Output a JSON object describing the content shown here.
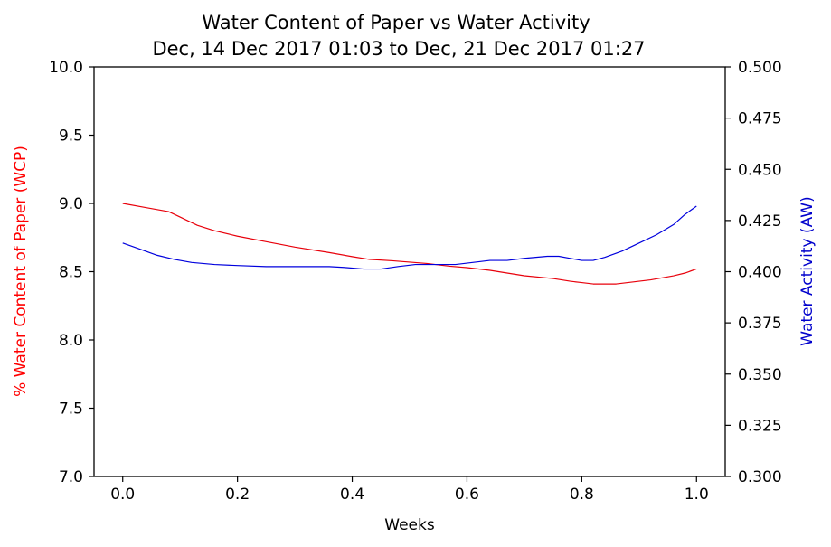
{
  "chart_data": {
    "type": "line",
    "title": "Water Content of Paper vs Water Activity",
    "subtitle": "Dec, 14 Dec 2017 01:03 to Dec, 21 Dec 2017 01:27",
    "xlabel": "Weeks",
    "ylabel_left": "% Water Content of Paper (WCP)",
    "ylabel_right": "Water Activity (AW)",
    "xlim": [
      -0.05,
      1.05
    ],
    "ylim_left": [
      7.0,
      10.0
    ],
    "ylim_right": [
      0.3,
      0.5
    ],
    "x_ticks": [
      "0.0",
      "0.2",
      "0.4",
      "0.6",
      "0.8",
      "1.0"
    ],
    "y_ticks_left": [
      "7.0",
      "7.5",
      "8.0",
      "8.5",
      "9.0",
      "9.5",
      "10.0"
    ],
    "y_ticks_right": [
      "0.300",
      "0.325",
      "0.350",
      "0.375",
      "0.400",
      "0.425",
      "0.450",
      "0.475",
      "0.500"
    ],
    "grid": false,
    "left_label_color": "#ff0000",
    "right_label_color": "#0000cc",
    "series": [
      {
        "axis": "left",
        "color": "#e8000b",
        "x": [
          0.0,
          0.04,
          0.08,
          0.1,
          0.13,
          0.16,
          0.2,
          0.25,
          0.3,
          0.36,
          0.4,
          0.43,
          0.47,
          0.5,
          0.53,
          0.57,
          0.6,
          0.64,
          0.67,
          0.7,
          0.75,
          0.78,
          0.8,
          0.82,
          0.84,
          0.86,
          0.88,
          0.92,
          0.96,
          0.98,
          1.0
        ],
        "values": [
          9.0,
          8.97,
          8.94,
          8.9,
          8.84,
          8.8,
          8.76,
          8.72,
          8.68,
          8.64,
          8.61,
          8.59,
          8.58,
          8.57,
          8.56,
          8.54,
          8.53,
          8.51,
          8.49,
          8.47,
          8.45,
          8.43,
          8.42,
          8.41,
          8.41,
          8.41,
          8.42,
          8.44,
          8.47,
          8.49,
          8.52
        ]
      },
      {
        "axis": "right",
        "color": "#0000dd",
        "x": [
          0.0,
          0.03,
          0.06,
          0.09,
          0.12,
          0.16,
          0.2,
          0.25,
          0.3,
          0.36,
          0.39,
          0.42,
          0.45,
          0.48,
          0.51,
          0.55,
          0.58,
          0.61,
          0.64,
          0.67,
          0.7,
          0.74,
          0.76,
          0.78,
          0.8,
          0.82,
          0.84,
          0.87,
          0.9,
          0.93,
          0.96,
          0.98,
          1.0
        ],
        "values": [
          0.414,
          0.411,
          0.408,
          0.406,
          0.4045,
          0.4035,
          0.403,
          0.4025,
          0.4025,
          0.4025,
          0.402,
          0.4013,
          0.4013,
          0.4025,
          0.4035,
          0.4035,
          0.4035,
          0.4045,
          0.4055,
          0.4055,
          0.4065,
          0.4075,
          0.4075,
          0.4065,
          0.4055,
          0.4055,
          0.407,
          0.41,
          0.414,
          0.418,
          0.423,
          0.428,
          0.432
        ]
      }
    ]
  }
}
